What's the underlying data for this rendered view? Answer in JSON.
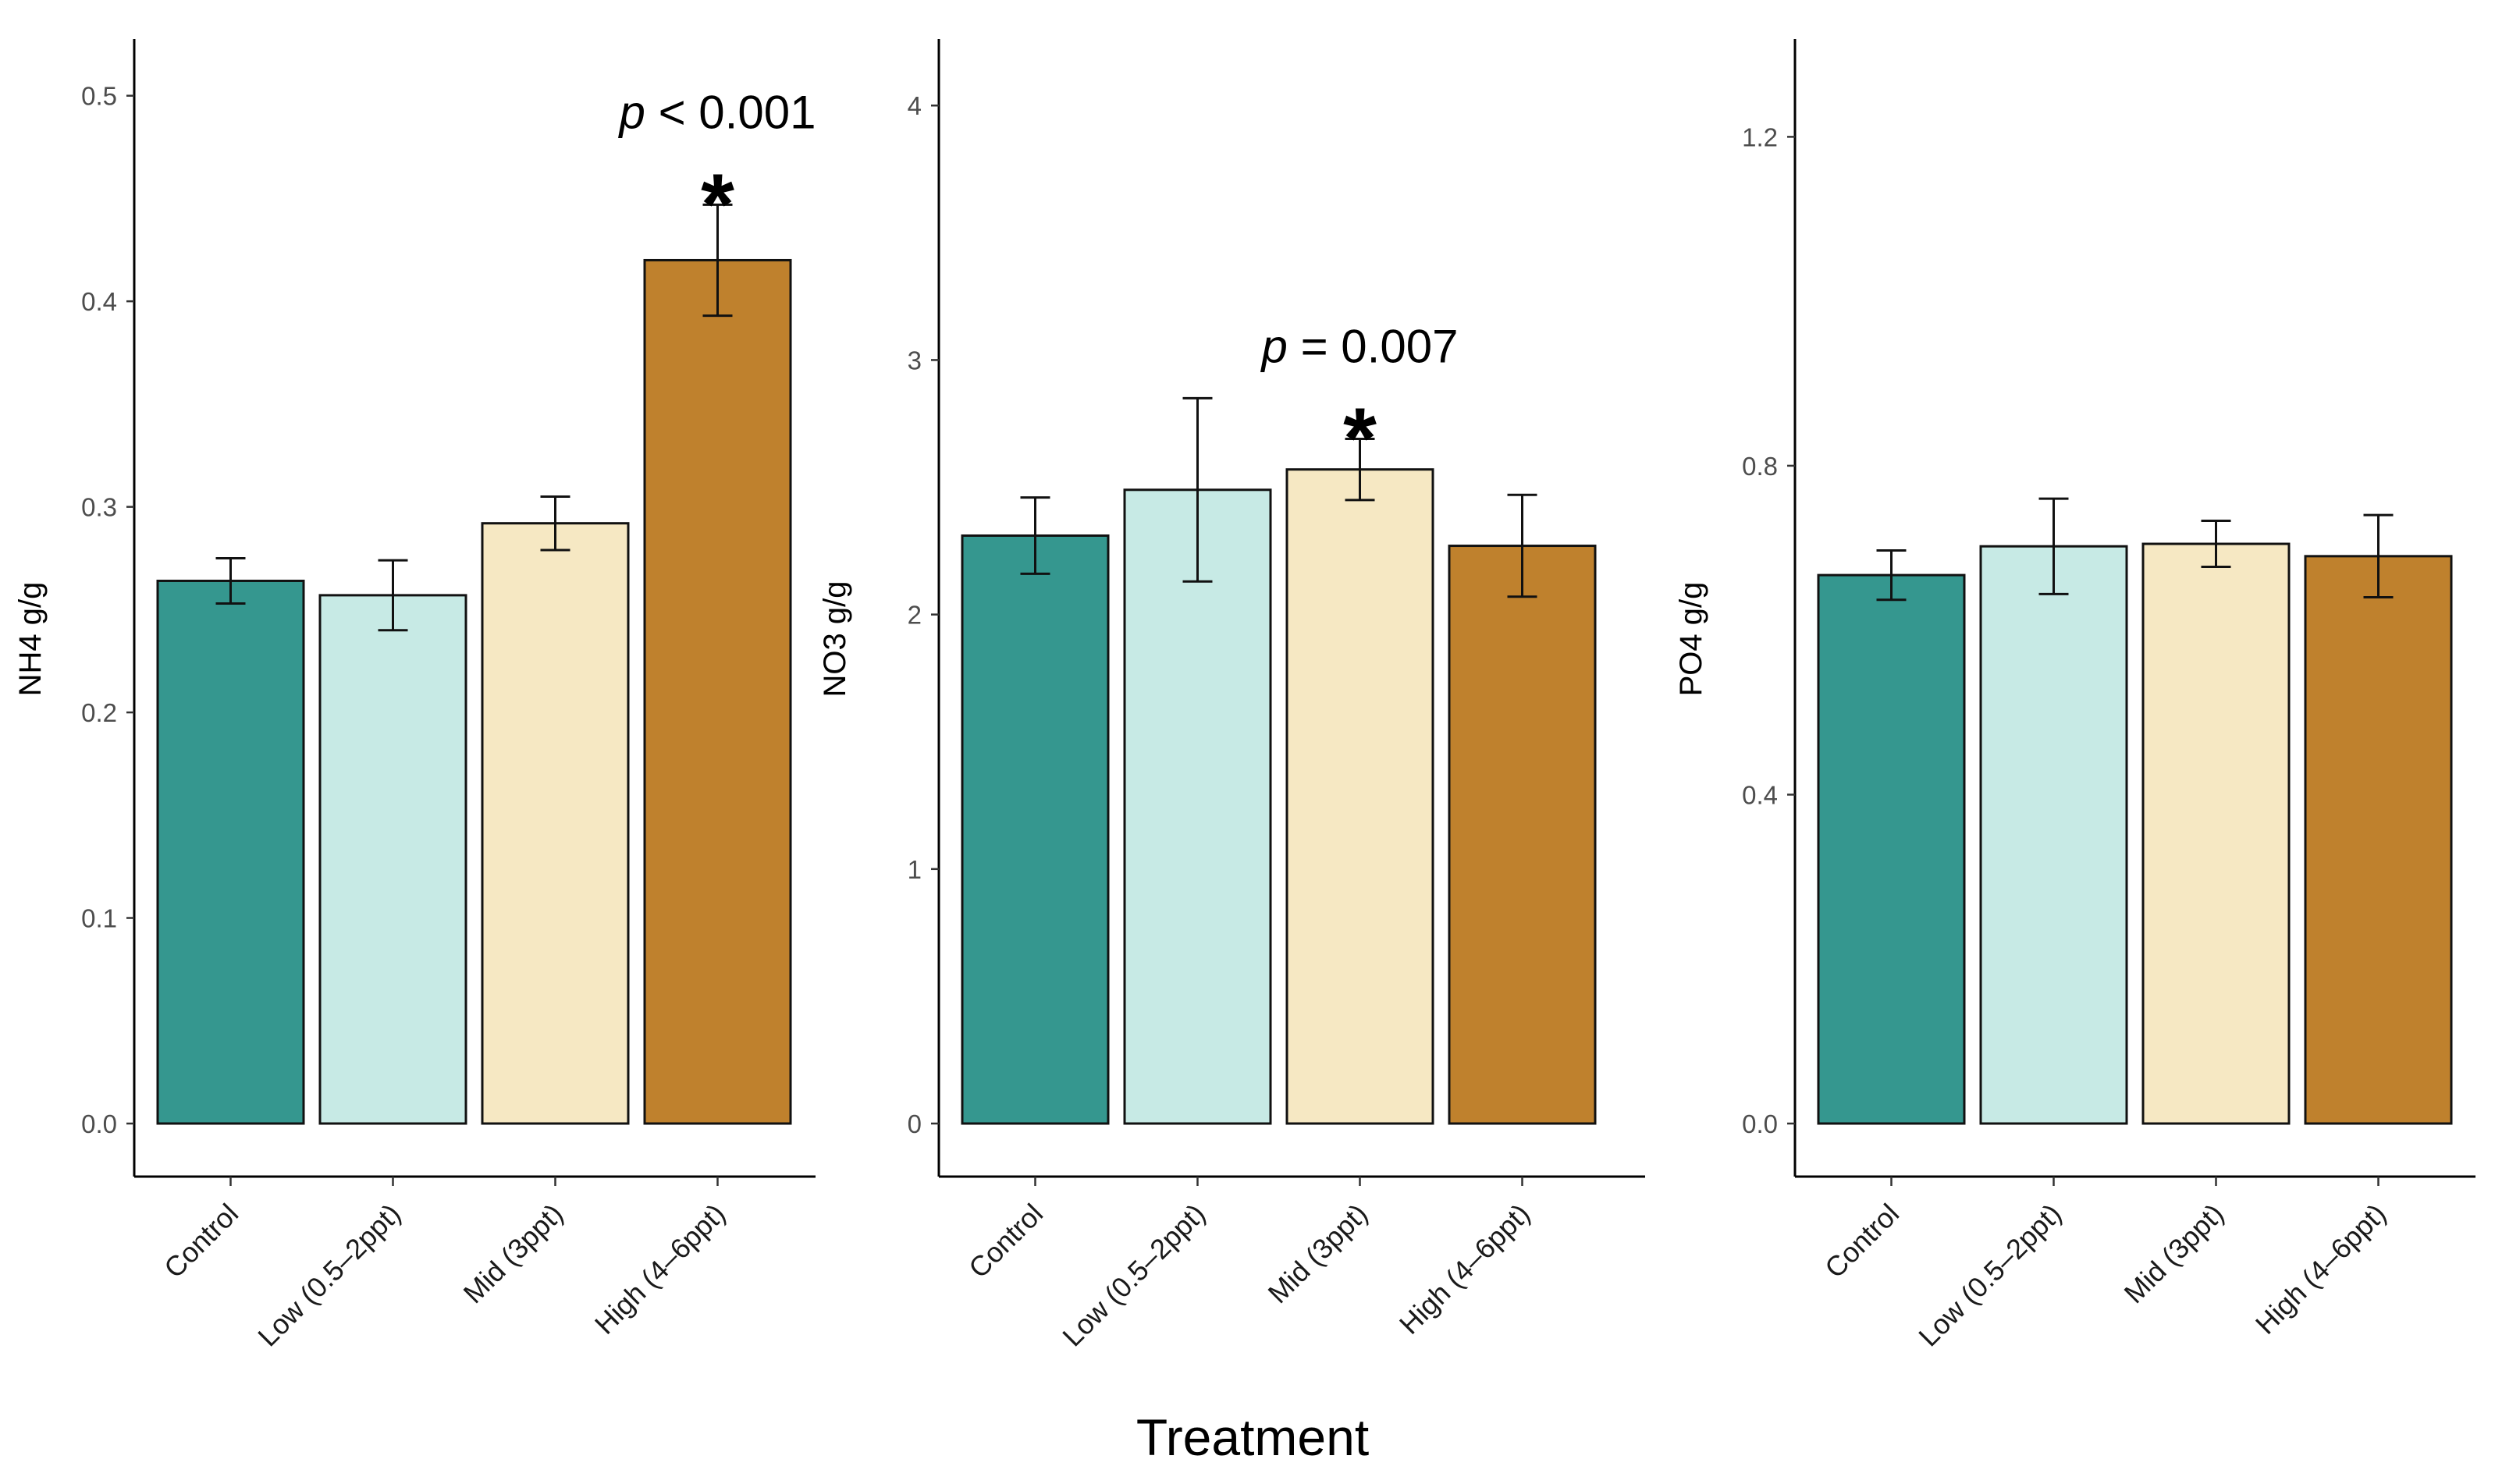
{
  "figure": {
    "xlabel": "Treatment",
    "colors": [
      "#35978f",
      "#c7eae5",
      "#f6e8c3",
      "#bf812d"
    ]
  },
  "chart_data": [
    {
      "type": "bar",
      "categories": [
        "Control",
        "Low (0.5–2ppt)",
        "Mid (3ppt)",
        "High (4–6ppt)"
      ],
      "values": [
        0.264,
        0.257,
        0.292,
        0.42
      ],
      "errors": [
        0.011,
        0.017,
        0.013,
        0.027
      ],
      "ylabel": "NH4 g/g",
      "ylim": [
        0,
        0.52
      ],
      "yticks": [
        0.0,
        0.1,
        0.2,
        0.3,
        0.4,
        0.5
      ],
      "ytick_labels": [
        "0.0",
        "0.1",
        "0.2",
        "0.3",
        "0.4",
        "0.5"
      ],
      "annotation": {
        "p_symbol": "p",
        "p_text": " < 0.001",
        "star": "*",
        "category_index": 3
      }
    },
    {
      "type": "bar",
      "categories": [
        "Control",
        "Low (0.5–2ppt)",
        "Mid (3ppt)",
        "High (4–6ppt)"
      ],
      "values": [
        2.31,
        2.49,
        2.57,
        2.27
      ],
      "errors": [
        0.15,
        0.36,
        0.12,
        0.2
      ],
      "ylabel": "NO3 g/g",
      "ylim": [
        0,
        4.2
      ],
      "yticks": [
        0,
        1,
        2,
        3,
        4
      ],
      "ytick_labels": [
        "0",
        "1",
        "2",
        "3",
        "4"
      ],
      "annotation": {
        "p_symbol": "p",
        "p_text": " = 0.007",
        "star": "*",
        "category_index": 2
      }
    },
    {
      "type": "bar",
      "categories": [
        "Control",
        "Low (0.5–2ppt)",
        "Mid (3ppt)",
        "High (4–6ppt)"
      ],
      "values": [
        0.667,
        0.702,
        0.705,
        0.69
      ],
      "errors": [
        0.03,
        0.058,
        0.028,
        0.05
      ],
      "ylabel": "PO4 g/g",
      "ylim": [
        0,
        1.3
      ],
      "yticks": [
        0.0,
        0.4,
        0.8,
        1.2
      ],
      "ytick_labels": [
        "0.0",
        "0.4",
        "0.8",
        "1.2"
      ],
      "annotation": null
    }
  ]
}
